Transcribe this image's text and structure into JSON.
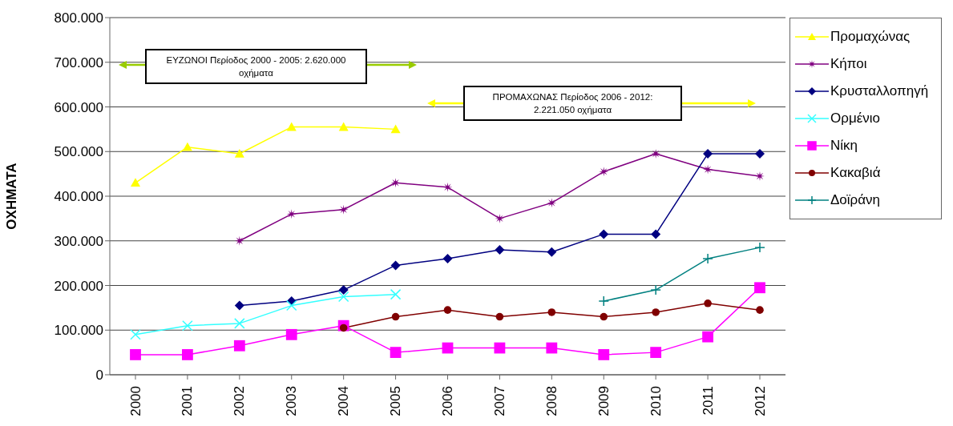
{
  "chart_data": {
    "type": "line",
    "ylabel": "ΟΧΗΜΑΤΑ",
    "categories": [
      "2000",
      "2001",
      "2002",
      "2003",
      "2004",
      "2005",
      "2006",
      "2007",
      "2008",
      "2009",
      "2010",
      "2011",
      "2012"
    ],
    "series": [
      {
        "name": "Προμαχώνας",
        "color": "#ffff00",
        "marker": "triangle",
        "values": [
          430000,
          510000,
          495000,
          555000,
          555000,
          550000,
          null,
          null,
          null,
          null,
          null,
          null,
          null
        ]
      },
      {
        "name": "Κήποι",
        "color": "#800080",
        "marker": "star",
        "values": [
          null,
          null,
          300000,
          360000,
          370000,
          430000,
          420000,
          350000,
          385000,
          455000,
          495000,
          460000,
          445000
        ]
      },
      {
        "name": "Κρυσταλλοπηγή",
        "color": "#000080",
        "marker": "diamond",
        "values": [
          null,
          null,
          155000,
          165000,
          190000,
          245000,
          260000,
          280000,
          275000,
          315000,
          315000,
          495000,
          495000
        ]
      },
      {
        "name": "Ορμένιο",
        "color": "#33ffff",
        "marker": "x",
        "values": [
          90000,
          110000,
          115000,
          155000,
          175000,
          180000,
          null,
          null,
          null,
          null,
          null,
          null,
          null
        ]
      },
      {
        "name": "Νίκη",
        "color": "#ff00ff",
        "marker": "square",
        "values": [
          45000,
          45000,
          65000,
          90000,
          110000,
          50000,
          60000,
          60000,
          60000,
          45000,
          50000,
          85000,
          195000
        ]
      },
      {
        "name": "Κακαβιά",
        "color": "#800000",
        "marker": "circle",
        "values": [
          null,
          null,
          null,
          null,
          105000,
          130000,
          145000,
          130000,
          140000,
          130000,
          140000,
          160000,
          145000
        ]
      },
      {
        "name": "Δοϊράνη",
        "color": "#008080",
        "marker": "cross",
        "values": [
          null,
          null,
          null,
          null,
          null,
          null,
          null,
          null,
          null,
          165000,
          190000,
          260000,
          285000
        ]
      }
    ],
    "ylim": [
      0,
      800000
    ],
    "yticks": [
      0,
      {
        "value": 100000,
        "label": "100.000"
      },
      {
        "value": 200000,
        "label": "200.000"
      },
      {
        "value": 300000,
        "label": "300.000"
      },
      {
        "value": 400000,
        "label": "400.000"
      },
      {
        "value": 500000,
        "label": "500.000"
      },
      {
        "value": 600000,
        "label": "600.000"
      },
      {
        "value": 700000,
        "label": "700.000"
      },
      {
        "value": 800000,
        "label": "800.000"
      }
    ],
    "grid": "y",
    "legend": "top right",
    "annotations": [
      "ΕΥΖΩΝΟΙ Περίοδος 2000 - 2005: 2.620.000 οχήματα",
      "ΠΡΟΜΑΧΩΝΑΣ Περίοδος 2006 - 2012: 2.221.050 οχήματα"
    ]
  }
}
